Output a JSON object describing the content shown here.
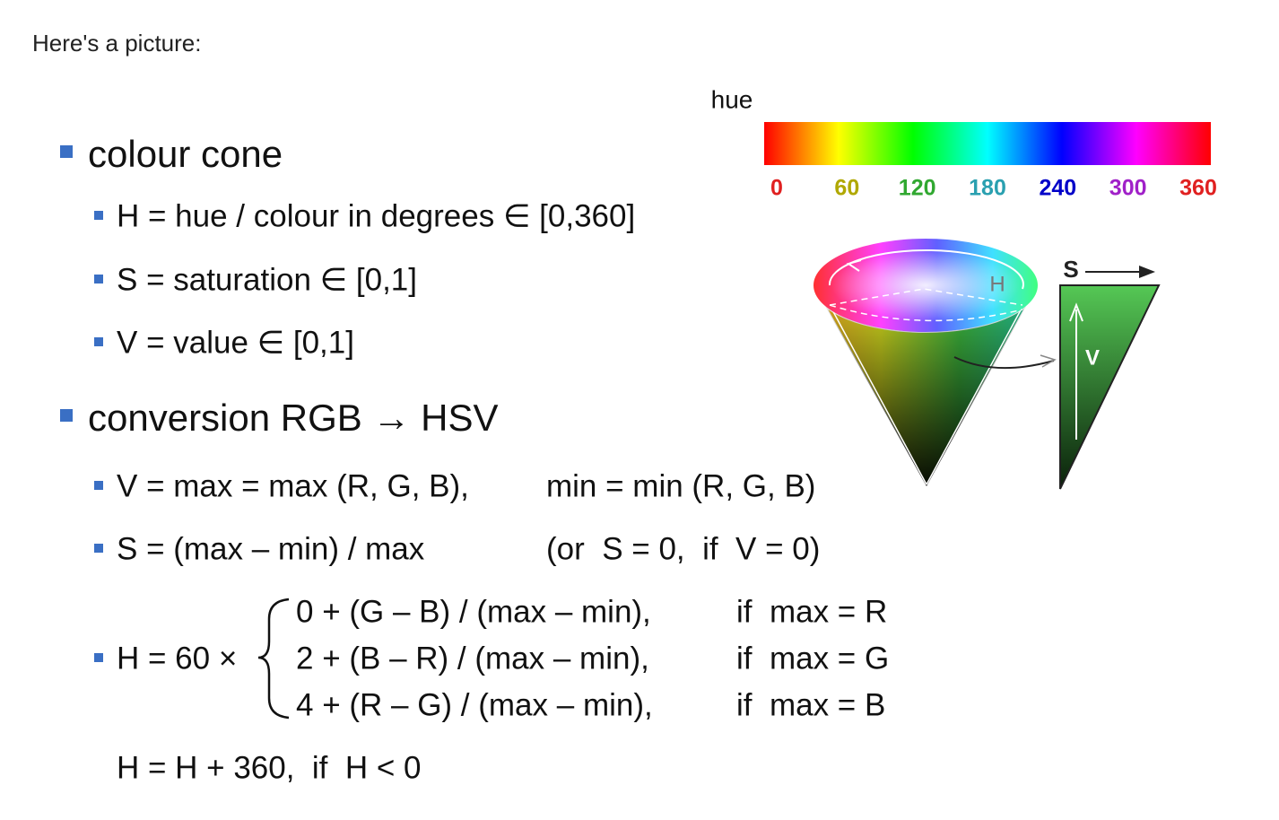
{
  "intro": "Here's a picture:",
  "hue_bar": {
    "label": "hue",
    "ticks": [
      0,
      60,
      120,
      180,
      240,
      300,
      360
    ]
  },
  "cone": {
    "h_label": "H",
    "s_label": "S",
    "v_label": "V"
  },
  "sections": [
    {
      "title": "colour cone",
      "items": [
        "H = hue / colour in degrees ∈ [0,360]",
        "S = saturation ∈ [0,1]",
        "V = value ∈ [0,1]"
      ]
    },
    {
      "title": "conversion RGB → HSV",
      "items": [
        [
          "V = max = max (R, G, B),",
          "min = min (R, G, B)"
        ],
        [
          "S = (max – min) / max",
          "(or  S = 0,  if  V = 0)"
        ]
      ],
      "hue_formula": {
        "lhs": "H = 60 ×",
        "cases": [
          [
            "0 + (G – B) / (max – min),",
            "if  max = R"
          ],
          [
            "2 + (B – R) / (max – min),",
            "if  max = G"
          ],
          [
            "4 + (R – G) / (max – min),",
            "if  max = B"
          ]
        ]
      },
      "note": "H = H + 360,  if  H < 0"
    }
  ]
}
